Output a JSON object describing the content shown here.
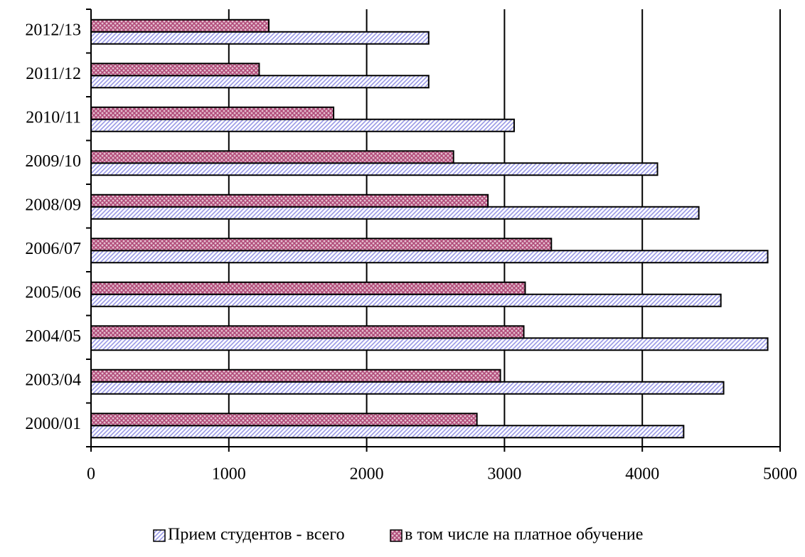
{
  "chart_data": {
    "type": "barh",
    "categories": [
      "2000/01",
      "2003/04",
      "2004/05",
      "2005/06",
      "2006/07",
      "2008/09",
      "2009/10",
      "2010/11",
      "2011/12",
      "2012/13"
    ],
    "series": [
      {
        "name": "Прием студентов - всего",
        "color": "#9999e6",
        "pattern": "diagonal",
        "values": [
          4300,
          4590,
          4910,
          4570,
          4910,
          4410,
          4110,
          3070,
          2450,
          2450
        ]
      },
      {
        "name": "в том числе на платное обучение",
        "color": "#b04a78",
        "pattern": "crosshatch",
        "values": [
          2800,
          2970,
          3140,
          3150,
          3340,
          2880,
          2630,
          1760,
          1220,
          1290
        ]
      }
    ],
    "xlim": [
      0,
      5000
    ],
    "xticks": [
      0,
      1000,
      2000,
      3000,
      4000,
      5000
    ],
    "grid": true,
    "legend": "bottom"
  }
}
